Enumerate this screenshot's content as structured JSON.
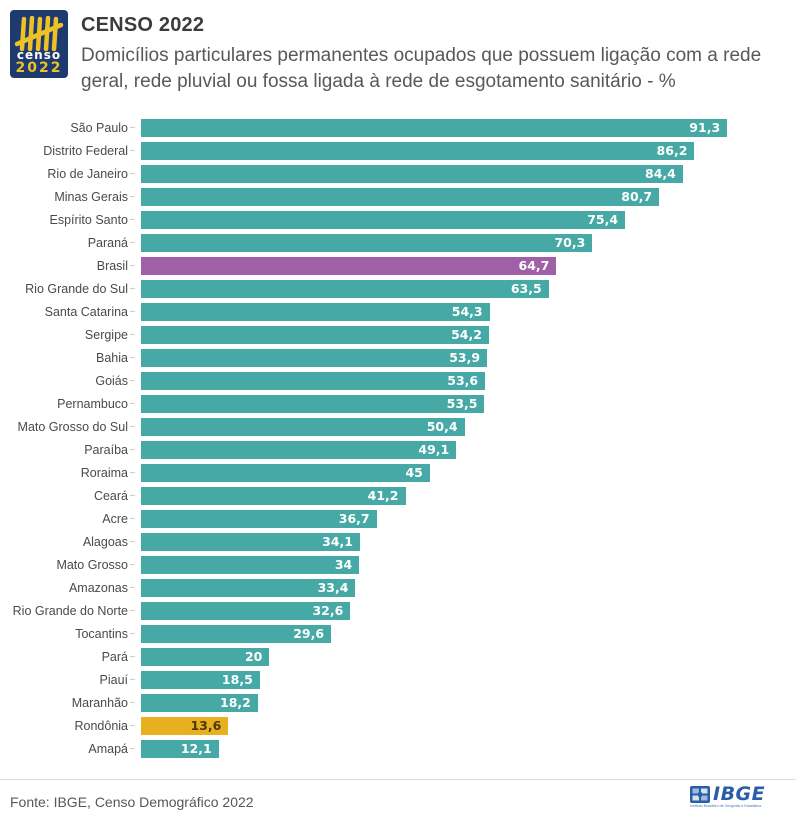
{
  "header": {
    "logo": {
      "word": "censo",
      "year": "2022"
    },
    "title": "CENSO 2022",
    "subtitle": "Domicílios particulares permanentes ocupados que possuem ligação com a rede geral, rede pluvial ou fossa ligada à rede de esgotamento sanitário - %"
  },
  "chart_data": {
    "type": "bar",
    "orientation": "horizontal",
    "title": "CENSO 2022",
    "subtitle": "Domicílios particulares permanentes ocupados que possuem ligação com a rede geral, rede pluvial ou fossa ligada à rede de esgotamento sanitário - %",
    "xlabel": "",
    "ylabel": "",
    "xlim": [
      0,
      100
    ],
    "grid": false,
    "legend": "none",
    "categories": [
      "São Paulo",
      "Distrito Federal",
      "Rio de Janeiro",
      "Minas Gerais",
      "Espírito Santo",
      "Paraná",
      "Brasil",
      "Rio Grande do Sul",
      "Santa Catarina",
      "Sergipe",
      "Bahia",
      "Goiás",
      "Pernambuco",
      "Mato Grosso do Sul",
      "Paraíba",
      "Roraima",
      "Ceará",
      "Acre",
      "Alagoas",
      "Mato Grosso",
      "Amazonas",
      "Rio Grande do Norte",
      "Tocantins",
      "Pará",
      "Piauí",
      "Maranhão",
      "Rondônia",
      "Amapá"
    ],
    "values": [
      91.3,
      86.2,
      84.4,
      80.7,
      75.4,
      70.3,
      64.7,
      63.5,
      54.3,
      54.2,
      53.9,
      53.6,
      53.5,
      50.4,
      49.1,
      45,
      41.2,
      36.7,
      34.1,
      34,
      33.4,
      32.6,
      29.6,
      20,
      18.5,
      18.2,
      13.6,
      12.1
    ],
    "value_labels": [
      "91,3",
      "86,2",
      "84,4",
      "80,7",
      "75,4",
      "70,3",
      "64,7",
      "63,5",
      "54,3",
      "54,2",
      "53,9",
      "53,6",
      "53,5",
      "50,4",
      "49,1",
      "45",
      "41,2",
      "36,7",
      "34,1",
      "34",
      "33,4",
      "32,6",
      "29,6",
      "20",
      "18,5",
      "18,2",
      "13,6",
      "12,1"
    ],
    "bar_styles": [
      "default",
      "default",
      "default",
      "default",
      "default",
      "default",
      "brasil",
      "default",
      "default",
      "default",
      "default",
      "default",
      "default",
      "default",
      "default",
      "default",
      "default",
      "default",
      "default",
      "default",
      "default",
      "default",
      "default",
      "default",
      "default",
      "default",
      "rondonia",
      "default"
    ],
    "colors": {
      "default": "#47a9a6",
      "brasil": "#a060a8",
      "rondonia": "#e8af20"
    },
    "value_text_colors": {
      "default": "#ffffff",
      "brasil": "#ffffff",
      "rondonia": "#4a3a05"
    }
  },
  "footer": {
    "source": "Fonte: IBGE, Censo Demográfico 2022",
    "ibge_word": "IBGE",
    "ibge_subtext": "Instituto Brasileiro de Geografia e Estatística"
  }
}
